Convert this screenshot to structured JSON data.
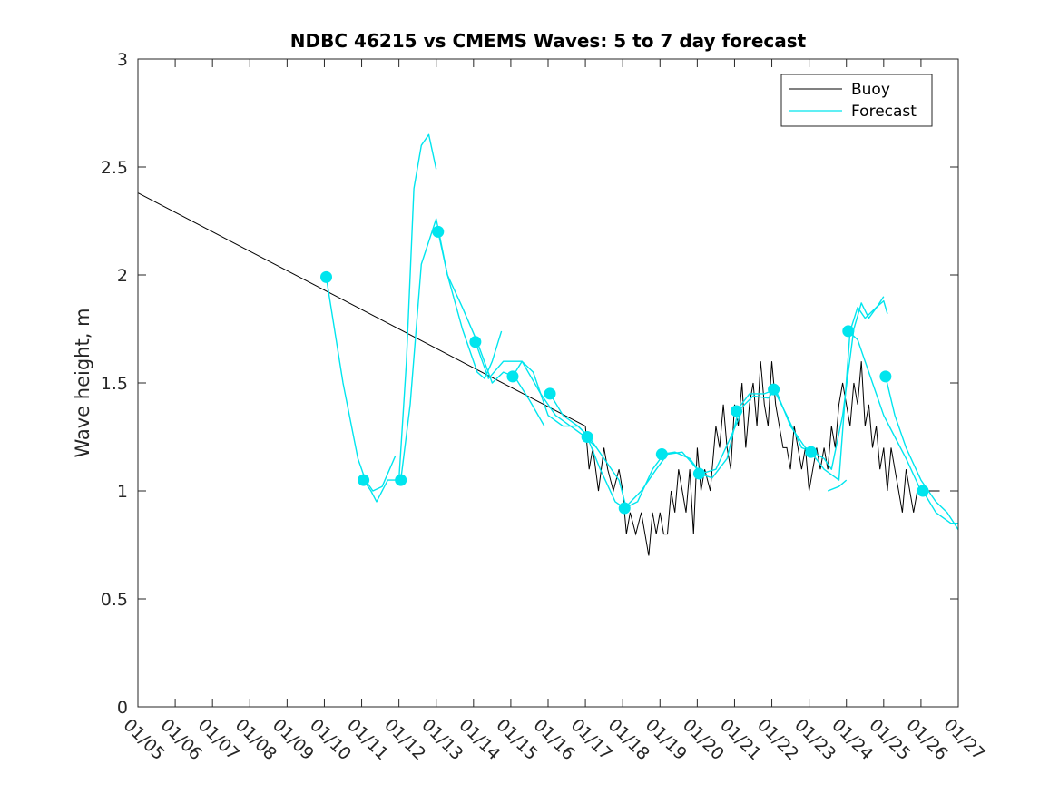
{
  "chart_data": {
    "type": "line",
    "title": "NDBC 46215 vs CMEMS Waves: 5 to 7 day forecast",
    "xlabel": "",
    "ylabel": "Wave height, m",
    "xlim": [
      0,
      22
    ],
    "ylim": [
      0,
      3
    ],
    "x_tick_labels": [
      "01/05",
      "01/06",
      "01/07",
      "01/08",
      "01/09",
      "01/10",
      "01/11",
      "01/12",
      "01/13",
      "01/14",
      "01/15",
      "01/16",
      "01/17",
      "01/18",
      "01/19",
      "01/20",
      "01/21",
      "01/22",
      "01/23",
      "01/24",
      "01/25",
      "01/26",
      "01/27"
    ],
    "y_ticks": [
      0,
      0.5,
      1,
      1.5,
      2,
      2.5,
      3
    ],
    "y_tick_labels": [
      "0",
      "0.5",
      "1",
      "1.5",
      "2",
      "2.5",
      "3"
    ],
    "x_unit": "days since 01/05",
    "legend": {
      "position": "top-right",
      "entries": [
        {
          "label": "Buoy",
          "color": "#000000"
        },
        {
          "label": "Forecast",
          "color": "#00e5ee"
        }
      ]
    },
    "colors": {
      "buoy": "#000000",
      "forecast": "#00e5ee"
    },
    "series": [
      {
        "name": "Buoy",
        "x": [
          0,
          12,
          12.1,
          12.2,
          12.35,
          12.5,
          12.6,
          12.75,
          12.9,
          13.0,
          13.1,
          13.2,
          13.35,
          13.5,
          13.6,
          13.7,
          13.8,
          13.9,
          14.0,
          14.1,
          14.2,
          14.3,
          14.4,
          14.5,
          14.6,
          14.7,
          14.8,
          14.9,
          15.0,
          15.1,
          15.2,
          15.35,
          15.5,
          15.6,
          15.7,
          15.8,
          15.9,
          16.0,
          16.1,
          16.2,
          16.3,
          16.4,
          16.5,
          16.6,
          16.7,
          16.8,
          16.9,
          17.0,
          17.1,
          17.2,
          17.3,
          17.4,
          17.5,
          17.6,
          17.7,
          17.8,
          17.9,
          18.0,
          18.1,
          18.2,
          18.3,
          18.4,
          18.5,
          18.6,
          18.7,
          18.8,
          18.9,
          19.0,
          19.1,
          19.2,
          19.3,
          19.4,
          19.5,
          19.6,
          19.7,
          19.8,
          19.9,
          20.0,
          20.1,
          20.2,
          20.3,
          20.4,
          20.5,
          20.6,
          20.7,
          20.8,
          20.9,
          21.0,
          21.1,
          21.2,
          21.3,
          21.4,
          21.5
        ],
        "y": [
          2.38,
          1.3,
          1.1,
          1.2,
          1.0,
          1.2,
          1.1,
          1.0,
          1.1,
          1.0,
          0.8,
          0.9,
          0.8,
          0.9,
          0.8,
          0.7,
          0.9,
          0.8,
          0.9,
          0.8,
          0.8,
          1.0,
          0.9,
          1.1,
          1.0,
          0.9,
          1.1,
          0.8,
          1.2,
          1.0,
          1.1,
          1.0,
          1.3,
          1.2,
          1.4,
          1.2,
          1.1,
          1.4,
          1.3,
          1.5,
          1.2,
          1.4,
          1.5,
          1.3,
          1.6,
          1.4,
          1.3,
          1.6,
          1.4,
          1.3,
          1.2,
          1.2,
          1.1,
          1.3,
          1.2,
          1.1,
          1.2,
          1.0,
          1.1,
          1.2,
          1.1,
          1.2,
          1.1,
          1.3,
          1.2,
          1.4,
          1.5,
          1.4,
          1.3,
          1.5,
          1.4,
          1.6,
          1.3,
          1.4,
          1.2,
          1.3,
          1.1,
          1.2,
          1.0,
          1.2,
          1.1,
          1.0,
          0.9,
          1.1,
          1.0,
          0.9,
          1.0,
          1.0,
          1.0,
          1.0,
          1.0,
          1.0,
          1.0
        ]
      },
      {
        "name": "Forecast",
        "segments": [
          {
            "x": [
              5.05,
              5.5,
              5.9,
              6.1,
              6.3,
              6.55,
              6.9
            ],
            "y": [
              1.99,
              1.5,
              1.15,
              1.05,
              1.0,
              1.02,
              1.16
            ]
          },
          {
            "x": [
              6.05,
              6.25,
              6.4,
              6.7,
              7.0,
              7.2,
              7.4,
              7.6,
              7.8,
              8.0
            ],
            "y": [
              1.05,
              1.0,
              0.95,
              1.05,
              1.05,
              1.6,
              2.4,
              2.6,
              2.65,
              2.49
            ]
          },
          {
            "x": [
              7.05,
              7.3,
              7.6,
              8.0,
              8.3,
              8.7,
              9.1,
              9.3,
              9.5,
              9.75
            ],
            "y": [
              1.05,
              1.4,
              2.05,
              2.26,
              2.0,
              1.75,
              1.55,
              1.52,
              1.6,
              1.74
            ]
          },
          {
            "x": [
              8.05,
              8.3,
              8.7,
              9.1,
              9.5,
              9.8,
              10.1,
              10.5,
              10.9
            ],
            "y": [
              2.2,
              2.0,
              1.85,
              1.69,
              1.5,
              1.55,
              1.53,
              1.42,
              1.3
            ]
          },
          {
            "x": [
              9.05,
              9.4,
              9.8,
              10.3,
              10.8,
              11.2,
              11.6,
              12.0,
              12.3
            ],
            "y": [
              1.69,
              1.52,
              1.6,
              1.6,
              1.45,
              1.35,
              1.3,
              1.25,
              1.2
            ]
          },
          {
            "x": [
              10.05,
              10.3,
              10.6,
              11.0,
              11.4,
              11.8,
              12.1
            ],
            "y": [
              1.53,
              1.6,
              1.55,
              1.35,
              1.3,
              1.3,
              1.25
            ]
          },
          {
            "x": [
              11.05,
              11.4,
              11.8,
              12.1,
              12.5,
              12.9,
              13.1
            ],
            "y": [
              1.45,
              1.35,
              1.3,
              1.25,
              1.15,
              1.05,
              0.92
            ]
          },
          {
            "x": [
              12.05,
              12.4,
              12.8,
              13.05,
              13.4,
              13.8,
              14.1
            ],
            "y": [
              1.25,
              1.1,
              0.95,
              0.92,
              0.95,
              1.1,
              1.17
            ]
          },
          {
            "x": [
              13.05,
              13.5,
              13.9,
              14.2,
              14.6,
              15.0,
              15.2
            ],
            "y": [
              0.92,
              1.0,
              1.1,
              1.17,
              1.18,
              1.1,
              1.08
            ]
          },
          {
            "x": [
              14.05,
              14.4,
              14.8,
              15.1,
              15.5,
              15.9,
              16.2
            ],
            "y": [
              1.17,
              1.18,
              1.15,
              1.08,
              1.1,
              1.25,
              1.37
            ]
          },
          {
            "x": [
              15.05,
              15.4,
              15.8,
              16.1,
              16.5,
              16.9,
              17.1
            ],
            "y": [
              1.08,
              1.06,
              1.15,
              1.37,
              1.44,
              1.43,
              1.47
            ]
          },
          {
            "x": [
              16.05,
              16.4,
              16.8,
              17.1,
              17.5,
              17.9,
              18.2
            ],
            "y": [
              1.37,
              1.45,
              1.45,
              1.47,
              1.3,
              1.2,
              1.18
            ]
          },
          {
            "x": [
              17.05,
              17.4,
              17.8,
              18.1,
              18.4,
              18.6,
              18.9,
              19.2,
              19.4,
              19.6,
              19.85,
              20.0
            ],
            "y": [
              1.47,
              1.35,
              1.2,
              1.18,
              1.15,
              1.1,
              1.35,
              1.75,
              1.87,
              1.8,
              1.86,
              1.9
            ]
          },
          {
            "x": [
              18.05,
              18.4,
              18.8,
              19.1,
              19.3,
              19.5,
              19.8,
              20.0,
              20.1
            ],
            "y": [
              1.18,
              1.1,
              1.05,
              1.74,
              1.85,
              1.8,
              1.85,
              1.88,
              1.82
            ]
          },
          {
            "x": [
              18.5,
              18.8,
              19.0
            ],
            "y": [
              1.0,
              1.02,
              1.05
            ]
          },
          {
            "x": [
              19.05,
              19.3,
              19.6,
              20.0,
              20.3,
              20.6,
              21.0
            ],
            "y": [
              1.74,
              1.7,
              1.55,
              1.35,
              1.25,
              1.15,
              1.0
            ]
          },
          {
            "x": [
              20.05,
              20.3,
              20.6,
              21.0,
              21.4,
              21.7,
              22.0
            ],
            "y": [
              1.53,
              1.35,
              1.2,
              1.05,
              0.95,
              0.9,
              0.82
            ]
          },
          {
            "x": [
              21.05,
              21.4,
              21.8,
              22.0
            ],
            "y": [
              1.0,
              0.9,
              0.85,
              0.85
            ]
          }
        ],
        "markers": {
          "x": [
            5.05,
            6.05,
            7.05,
            8.05,
            9.05,
            10.05,
            11.05,
            12.05,
            13.05,
            14.05,
            15.05,
            16.05,
            17.05,
            18.05,
            19.05,
            20.05,
            21.05
          ],
          "y": [
            1.99,
            1.05,
            1.05,
            2.2,
            1.69,
            1.53,
            1.45,
            1.25,
            0.92,
            1.17,
            1.08,
            1.37,
            1.47,
            1.18,
            1.74,
            1.53,
            1.0
          ]
        }
      }
    ]
  }
}
